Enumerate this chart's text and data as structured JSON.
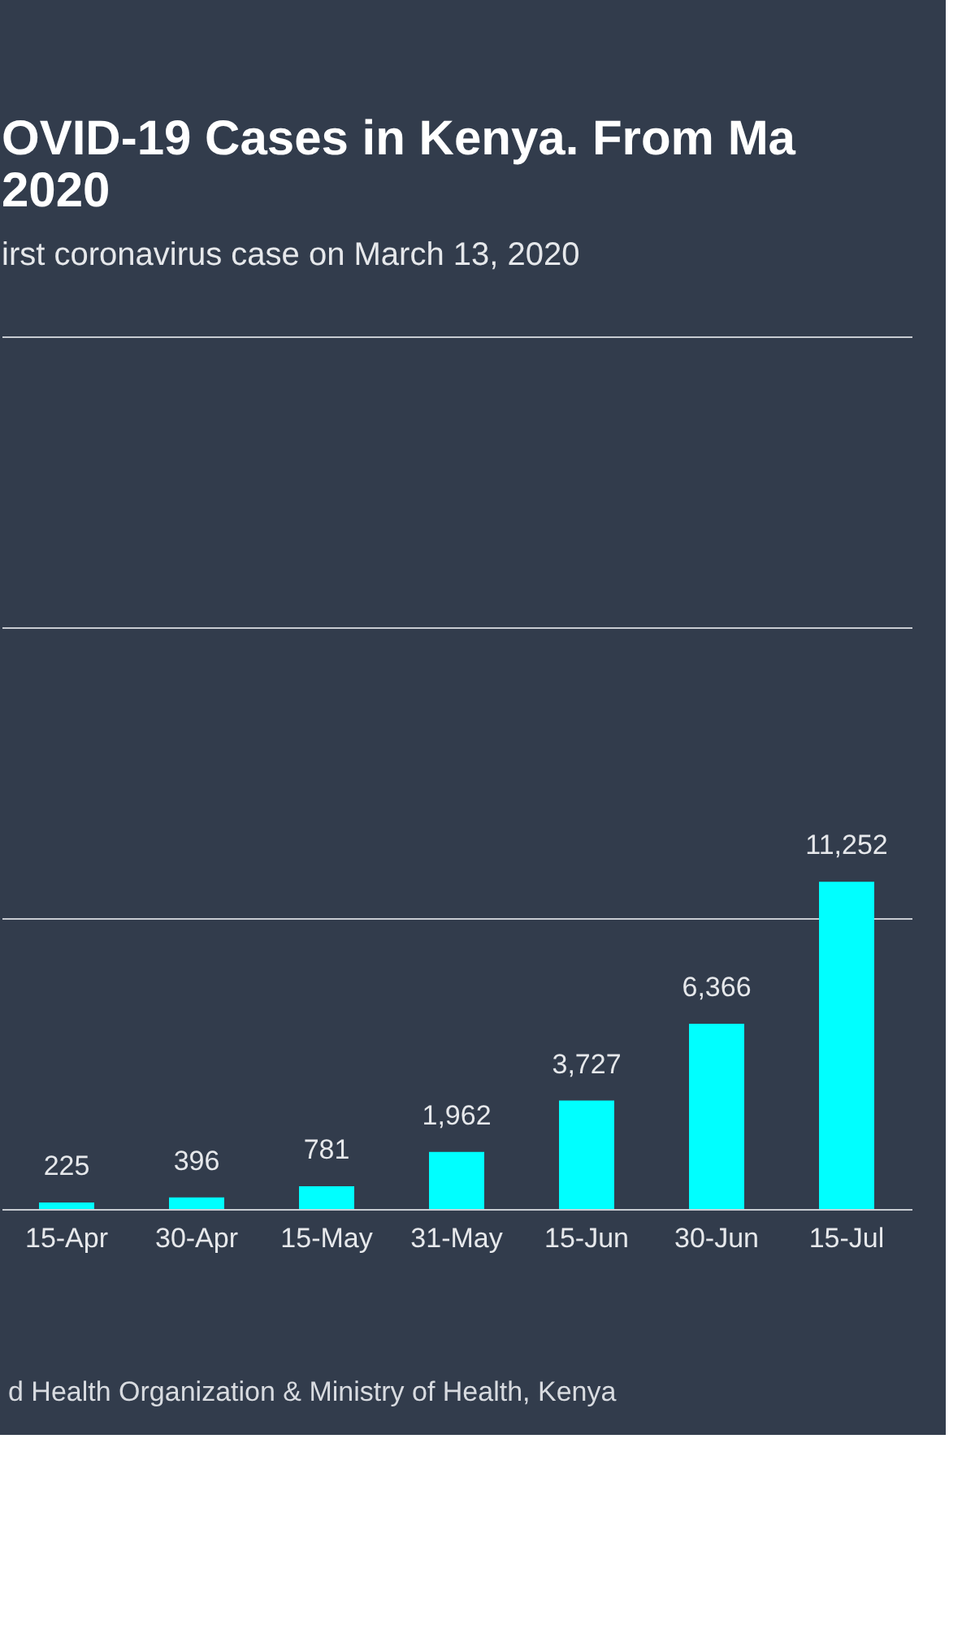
{
  "chart_data": {
    "type": "bar",
    "title": [
      "OVID-19 Cases in Kenya. From Ma",
      "2020"
    ],
    "subtitle": "irst coronavirus case on March 13, 2020",
    "categories": [
      "15-Apr",
      "30-Apr",
      "15-May",
      "31-May",
      "15-Jun",
      "30-Jun",
      "15-Jul"
    ],
    "values": [
      225,
      396,
      781,
      1962,
      3727,
      6366,
      11252
    ],
    "value_labels": [
      "225",
      "396",
      "781",
      "1,962",
      "3,727",
      "6,366",
      "11,252"
    ],
    "color": "#00ffff",
    "ylim": [
      0,
      30000
    ],
    "yticks": [
      {
        "value": 0,
        "label": null
      },
      {
        "value": 10000,
        "label": null
      },
      {
        "value": 20000,
        "label": null
      },
      {
        "value": 30000,
        "label": null
      }
    ],
    "grid": "y",
    "tick_labels": "x",
    "annotations": [
      "d Health Organization & Ministry of Health, Kenya"
    ]
  }
}
